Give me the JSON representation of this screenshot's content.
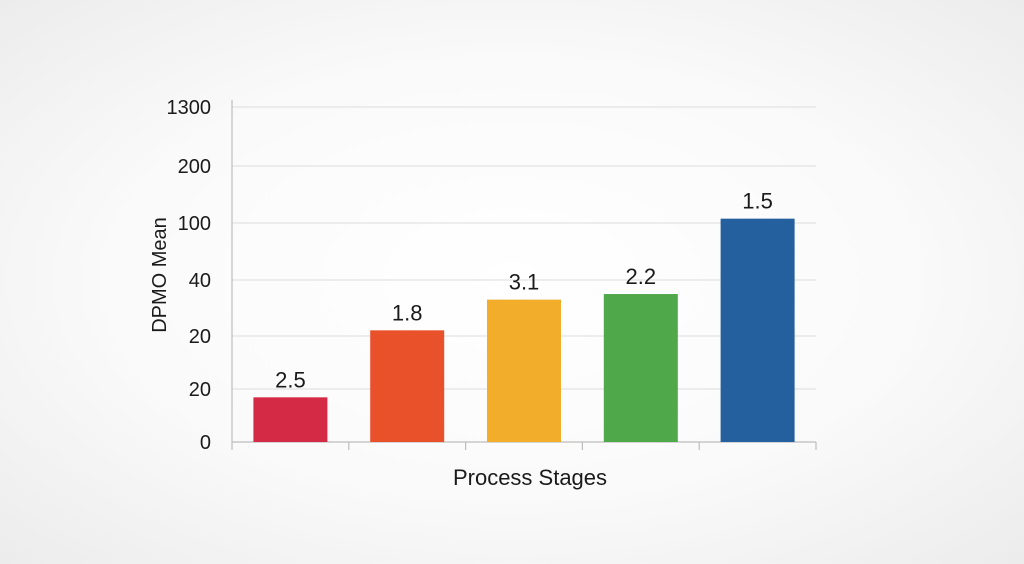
{
  "chart_data": {
    "type": "bar",
    "title": "",
    "xlabel": "Process Stages",
    "ylabel": "DPMO Mean",
    "y_tick_labels": [
      "0",
      "20",
      "20",
      "40",
      "100",
      "200",
      "1300"
    ],
    "categories": [
      "",
      "",
      "",
      "",
      ""
    ],
    "values": [
      8,
      20,
      31,
      33,
      100
    ],
    "data_labels": [
      "2.5",
      "1.8",
      "3.1",
      "2.2",
      "1.5"
    ],
    "colors": [
      "#d42a45",
      "#e8512a",
      "#f2ad2b",
      "#4fa84a",
      "#245f9e"
    ],
    "grid": true,
    "legend": "none"
  }
}
